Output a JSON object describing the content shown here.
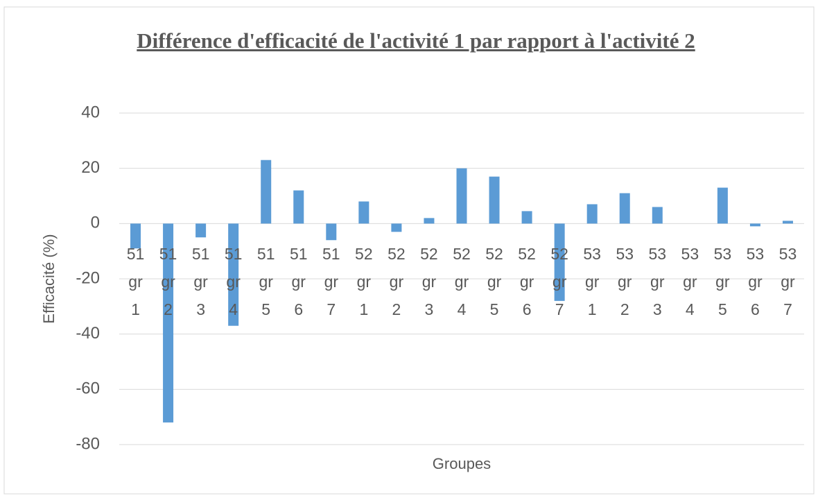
{
  "chart_data": {
    "type": "bar",
    "title": "Différence d'efficacité de l'activité 1 par rapport à l'activité 2",
    "xlabel": "Groupes",
    "ylabel": "Efficacité (%)",
    "categories": [
      "51 gr 1",
      "51 gr 2",
      "51 gr 3",
      "51 gr 4",
      "51 gr 5",
      "51 gr 6",
      "51 gr 7",
      "52 gr 1",
      "52 gr 2",
      "52 gr 3",
      "52 gr 4",
      "52 gr 5",
      "52 gr 6",
      "52 gr 7",
      "53 gr 1",
      "53 gr 2",
      "53 gr 3",
      "53 gr 4",
      "53 gr 5",
      "53 gr 6",
      "53 gr 7"
    ],
    "values": [
      -9,
      -72,
      -5,
      -37,
      23,
      12,
      -6,
      8,
      -3,
      2,
      20,
      17,
      4.5,
      -28,
      7,
      11,
      6,
      0,
      13,
      -1,
      1
    ],
    "color": "#5b9bd5",
    "ylim": [
      -80,
      40
    ],
    "yticks": [
      -80,
      -60,
      -40,
      -20,
      0,
      20,
      40
    ],
    "grid": true
  }
}
